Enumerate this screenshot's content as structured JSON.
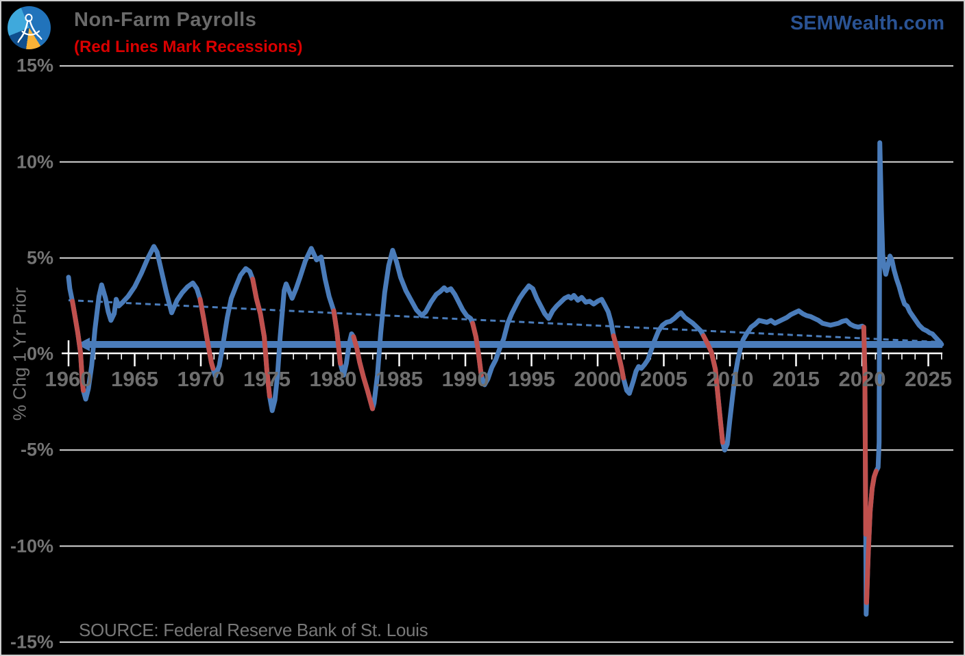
{
  "header": {
    "title": "Non-Farm Payrolls",
    "subtitle": "(Red Lines Mark Recessions)",
    "brand": "SEMWealth.com",
    "logo_name": "sem-compass-logo"
  },
  "footer": {
    "source": "SOURCE: Federal Reserve Bank of St. Louis"
  },
  "colors": {
    "background": "#000000",
    "line_blue": "#4a7cba",
    "recession_red": "#c0504d",
    "grid": "#d9d9d9",
    "axis_white": "#ffffff",
    "title_gray": "#6a6a6a",
    "subtitle_red": "#d90000",
    "brand_blue": "#2a5394",
    "label_gray": "#747474"
  },
  "chart_data": {
    "type": "line",
    "title": "Non-Farm Payrolls",
    "ylabel": "% Chg 1 Yr Prior",
    "xlabel": "",
    "ylim": [
      -15,
      15
    ],
    "xlim": [
      1959.4,
      2026.2
    ],
    "legend": "none",
    "grid": "horizontal",
    "y_axis": {
      "title": "% Chg 1 Yr Prior",
      "ticks": [
        {
          "v": 15,
          "label": "15%"
        },
        {
          "v": 10,
          "label": "10%"
        },
        {
          "v": 5,
          "label": "5%"
        },
        {
          "v": 0,
          "label": "0%"
        },
        {
          "v": -5,
          "label": "-5%"
        },
        {
          "v": -10,
          "label": "-10%"
        },
        {
          "v": -15,
          "label": "-15%"
        }
      ],
      "gridline_values": [
        15,
        10,
        5,
        -5,
        -10,
        -15
      ]
    },
    "x_axis": {
      "major_tick_years": [
        1960,
        1965,
        1970,
        1975,
        1980,
        1985,
        1990,
        1995,
        2000,
        2005,
        2010,
        2015,
        2020,
        2025
      ],
      "major_tick_labels": [
        "1960",
        "1965",
        "1970",
        "1975",
        "1980",
        "1985",
        "1990",
        "1995",
        "2000",
        "2005",
        "2010",
        "2015",
        "2020",
        "2025"
      ],
      "minor_tick_start": 1960,
      "minor_tick_end": 2026,
      "minor_tick_step": 1
    },
    "reference_line": {
      "value": 0.5,
      "arrow": "left"
    },
    "trend_line": {
      "dashed": true,
      "points": [
        [
          1960,
          2.8
        ],
        [
          2026,
          0.62
        ]
      ]
    },
    "recessions": [
      [
        1960.29,
        1961.12
      ],
      [
        1969.95,
        1970.92
      ],
      [
        1973.92,
        1975.2
      ],
      [
        1980.05,
        1980.55
      ],
      [
        1981.55,
        1982.98
      ],
      [
        1990.55,
        1991.2
      ],
      [
        2001.2,
        2001.95
      ],
      [
        2008.0,
        2009.45
      ],
      [
        2020.12,
        2020.27
      ],
      [
        2020.33,
        2021.05
      ]
    ],
    "series": [
      {
        "name": "Non-Farm Payrolls % Chg 1 Yr Prior",
        "points": [
          [
            1960.0,
            4.0
          ],
          [
            1960.1,
            3.4
          ],
          [
            1960.29,
            2.75
          ],
          [
            1960.5,
            1.9
          ],
          [
            1960.7,
            1.1
          ],
          [
            1960.9,
            0.1
          ],
          [
            1961.05,
            -1.5
          ],
          [
            1961.12,
            -1.9
          ],
          [
            1961.3,
            -2.35
          ],
          [
            1961.5,
            -1.8
          ],
          [
            1961.75,
            -0.6
          ],
          [
            1962.0,
            1.3
          ],
          [
            1962.3,
            3.0
          ],
          [
            1962.5,
            3.6
          ],
          [
            1962.8,
            2.9
          ],
          [
            1963.0,
            2.2
          ],
          [
            1963.2,
            1.75
          ],
          [
            1963.45,
            2.1
          ],
          [
            1963.6,
            2.85
          ],
          [
            1963.8,
            2.5
          ],
          [
            1964.1,
            2.7
          ],
          [
            1964.5,
            3.0
          ],
          [
            1965.0,
            3.5
          ],
          [
            1965.5,
            4.2
          ],
          [
            1966.0,
            5.0
          ],
          [
            1966.45,
            5.6
          ],
          [
            1966.7,
            5.3
          ],
          [
            1967.0,
            4.4
          ],
          [
            1967.4,
            3.2
          ],
          [
            1967.8,
            2.15
          ],
          [
            1968.2,
            2.8
          ],
          [
            1968.6,
            3.2
          ],
          [
            1969.0,
            3.5
          ],
          [
            1969.4,
            3.7
          ],
          [
            1969.7,
            3.4
          ],
          [
            1969.95,
            2.85
          ],
          [
            1970.2,
            1.9
          ],
          [
            1970.5,
            0.7
          ],
          [
            1970.8,
            -0.45
          ],
          [
            1970.92,
            -0.75
          ],
          [
            1971.1,
            -1.15
          ],
          [
            1971.4,
            -0.6
          ],
          [
            1971.7,
            0.6
          ],
          [
            1972.0,
            1.9
          ],
          [
            1972.3,
            2.9
          ],
          [
            1972.7,
            3.6
          ],
          [
            1973.0,
            4.1
          ],
          [
            1973.4,
            4.45
          ],
          [
            1973.7,
            4.3
          ],
          [
            1973.92,
            3.9
          ],
          [
            1974.2,
            2.9
          ],
          [
            1974.5,
            2.1
          ],
          [
            1974.8,
            0.9
          ],
          [
            1975.0,
            -0.9
          ],
          [
            1975.2,
            -2.2
          ],
          [
            1975.4,
            -2.95
          ],
          [
            1975.6,
            -2.4
          ],
          [
            1975.8,
            -1.1
          ],
          [
            1976.0,
            0.9
          ],
          [
            1976.3,
            3.3
          ],
          [
            1976.45,
            3.65
          ],
          [
            1976.9,
            2.9
          ],
          [
            1977.2,
            3.4
          ],
          [
            1977.5,
            4.0
          ],
          [
            1977.9,
            4.85
          ],
          [
            1978.35,
            5.5
          ],
          [
            1978.75,
            4.9
          ],
          [
            1979.1,
            5.05
          ],
          [
            1979.4,
            3.9
          ],
          [
            1979.7,
            3.0
          ],
          [
            1980.05,
            2.25
          ],
          [
            1980.3,
            1.1
          ],
          [
            1980.55,
            -0.5
          ],
          [
            1980.8,
            -1.1
          ],
          [
            1981.0,
            -0.5
          ],
          [
            1981.2,
            0.5
          ],
          [
            1981.4,
            1.05
          ],
          [
            1981.55,
            0.9
          ],
          [
            1981.8,
            0.3
          ],
          [
            1982.0,
            -0.4
          ],
          [
            1982.3,
            -1.2
          ],
          [
            1982.6,
            -1.9
          ],
          [
            1982.98,
            -2.85
          ],
          [
            1983.1,
            -2.55
          ],
          [
            1983.35,
            -1.1
          ],
          [
            1983.6,
            1.1
          ],
          [
            1983.9,
            3.2
          ],
          [
            1984.2,
            4.6
          ],
          [
            1984.5,
            5.4
          ],
          [
            1984.8,
            4.8
          ],
          [
            1985.1,
            4.0
          ],
          [
            1985.5,
            3.3
          ],
          [
            1985.9,
            2.8
          ],
          [
            1986.3,
            2.3
          ],
          [
            1986.7,
            2.0
          ],
          [
            1987.0,
            2.2
          ],
          [
            1987.4,
            2.7
          ],
          [
            1987.8,
            3.1
          ],
          [
            1988.1,
            3.25
          ],
          [
            1988.4,
            3.45
          ],
          [
            1988.6,
            3.3
          ],
          [
            1988.9,
            3.4
          ],
          [
            1989.2,
            3.1
          ],
          [
            1989.5,
            2.7
          ],
          [
            1989.8,
            2.3
          ],
          [
            1990.1,
            2.0
          ],
          [
            1990.4,
            1.85
          ],
          [
            1990.55,
            1.6
          ],
          [
            1990.8,
            0.9
          ],
          [
            1991.0,
            0.0
          ],
          [
            1991.2,
            -1.1
          ],
          [
            1991.45,
            -1.6
          ],
          [
            1991.7,
            -1.3
          ],
          [
            1992.0,
            -0.7
          ],
          [
            1992.3,
            -0.3
          ],
          [
            1992.6,
            0.3
          ],
          [
            1992.9,
            0.8
          ],
          [
            1993.2,
            1.6
          ],
          [
            1993.5,
            2.1
          ],
          [
            1993.8,
            2.5
          ],
          [
            1994.1,
            2.9
          ],
          [
            1994.4,
            3.2
          ],
          [
            1994.8,
            3.55
          ],
          [
            1995.1,
            3.4
          ],
          [
            1995.4,
            2.9
          ],
          [
            1995.7,
            2.5
          ],
          [
            1996.0,
            2.1
          ],
          [
            1996.3,
            1.85
          ],
          [
            1996.6,
            2.25
          ],
          [
            1996.9,
            2.5
          ],
          [
            1997.2,
            2.7
          ],
          [
            1997.5,
            2.9
          ],
          [
            1997.8,
            3.0
          ],
          [
            1998.0,
            2.9
          ],
          [
            1998.2,
            3.05
          ],
          [
            1998.5,
            2.8
          ],
          [
            1998.8,
            2.95
          ],
          [
            1999.1,
            2.7
          ],
          [
            1999.4,
            2.75
          ],
          [
            1999.7,
            2.6
          ],
          [
            2000.0,
            2.75
          ],
          [
            2000.3,
            2.85
          ],
          [
            2000.5,
            2.6
          ],
          [
            2000.8,
            2.2
          ],
          [
            2001.0,
            1.7
          ],
          [
            2001.2,
            0.95
          ],
          [
            2001.5,
            0.2
          ],
          [
            2001.8,
            -0.7
          ],
          [
            2001.95,
            -1.25
          ],
          [
            2002.2,
            -1.9
          ],
          [
            2002.4,
            -2.05
          ],
          [
            2002.7,
            -1.4
          ],
          [
            2002.9,
            -0.9
          ],
          [
            2003.1,
            -0.65
          ],
          [
            2003.3,
            -0.75
          ],
          [
            2003.55,
            -0.55
          ],
          [
            2003.8,
            -0.3
          ],
          [
            2004.0,
            0.1
          ],
          [
            2004.3,
            0.7
          ],
          [
            2004.6,
            1.2
          ],
          [
            2004.9,
            1.5
          ],
          [
            2005.2,
            1.65
          ],
          [
            2005.5,
            1.7
          ],
          [
            2005.8,
            1.85
          ],
          [
            2006.1,
            2.05
          ],
          [
            2006.3,
            2.15
          ],
          [
            2006.6,
            1.9
          ],
          [
            2006.9,
            1.75
          ],
          [
            2007.2,
            1.6
          ],
          [
            2007.5,
            1.4
          ],
          [
            2007.8,
            1.2
          ],
          [
            2008.0,
            0.95
          ],
          [
            2008.3,
            0.55
          ],
          [
            2008.6,
            0.1
          ],
          [
            2008.9,
            -0.8
          ],
          [
            2009.1,
            -2.2
          ],
          [
            2009.3,
            -3.6
          ],
          [
            2009.45,
            -4.6
          ],
          [
            2009.6,
            -5.0
          ],
          [
            2009.8,
            -4.7
          ],
          [
            2010.0,
            -3.4
          ],
          [
            2010.2,
            -2.2
          ],
          [
            2010.4,
            -1.1
          ],
          [
            2010.6,
            -0.3
          ],
          [
            2010.8,
            0.3
          ],
          [
            2011.0,
            0.75
          ],
          [
            2011.3,
            1.1
          ],
          [
            2011.6,
            1.4
          ],
          [
            2011.9,
            1.55
          ],
          [
            2012.2,
            1.75
          ],
          [
            2012.5,
            1.7
          ],
          [
            2012.8,
            1.65
          ],
          [
            2013.1,
            1.75
          ],
          [
            2013.4,
            1.6
          ],
          [
            2013.7,
            1.7
          ],
          [
            2014.0,
            1.8
          ],
          [
            2014.3,
            1.9
          ],
          [
            2014.6,
            2.05
          ],
          [
            2014.9,
            2.15
          ],
          [
            2015.2,
            2.25
          ],
          [
            2015.5,
            2.1
          ],
          [
            2015.8,
            2.0
          ],
          [
            2016.1,
            1.95
          ],
          [
            2016.4,
            1.85
          ],
          [
            2016.7,
            1.75
          ],
          [
            2017.0,
            1.6
          ],
          [
            2017.3,
            1.55
          ],
          [
            2017.6,
            1.5
          ],
          [
            2017.9,
            1.55
          ],
          [
            2018.2,
            1.6
          ],
          [
            2018.5,
            1.7
          ],
          [
            2018.8,
            1.75
          ],
          [
            2019.1,
            1.55
          ],
          [
            2019.4,
            1.45
          ],
          [
            2019.7,
            1.4
          ],
          [
            2020.0,
            1.45
          ],
          [
            2020.12,
            1.4
          ],
          [
            2020.2,
            -1.0
          ],
          [
            2020.26,
            -8.0
          ],
          [
            2020.3,
            -13.55
          ],
          [
            2020.45,
            -10.5
          ],
          [
            2020.6,
            -8.2
          ],
          [
            2020.75,
            -7.0
          ],
          [
            2020.9,
            -6.4
          ],
          [
            2021.05,
            -6.1
          ],
          [
            2021.2,
            -5.9
          ],
          [
            2021.28,
            -4.6
          ],
          [
            2021.33,
            11.0
          ],
          [
            2021.45,
            7.5
          ],
          [
            2021.55,
            5.2
          ],
          [
            2021.65,
            4.6
          ],
          [
            2021.78,
            4.15
          ],
          [
            2021.95,
            4.6
          ],
          [
            2022.1,
            5.1
          ],
          [
            2022.25,
            4.9
          ],
          [
            2022.4,
            4.4
          ],
          [
            2022.6,
            3.9
          ],
          [
            2022.8,
            3.5
          ],
          [
            2023.0,
            3.0
          ],
          [
            2023.2,
            2.6
          ],
          [
            2023.4,
            2.5
          ],
          [
            2023.6,
            2.2
          ],
          [
            2023.8,
            2.0
          ],
          [
            2024.0,
            1.8
          ],
          [
            2024.3,
            1.5
          ],
          [
            2024.6,
            1.3
          ],
          [
            2024.9,
            1.2
          ],
          [
            2025.1,
            1.1
          ],
          [
            2025.3,
            1.05
          ],
          [
            2025.5,
            0.9
          ],
          [
            2025.7,
            0.75
          ],
          [
            2025.9,
            0.6
          ],
          [
            2026.0,
            0.5
          ]
        ]
      }
    ]
  }
}
